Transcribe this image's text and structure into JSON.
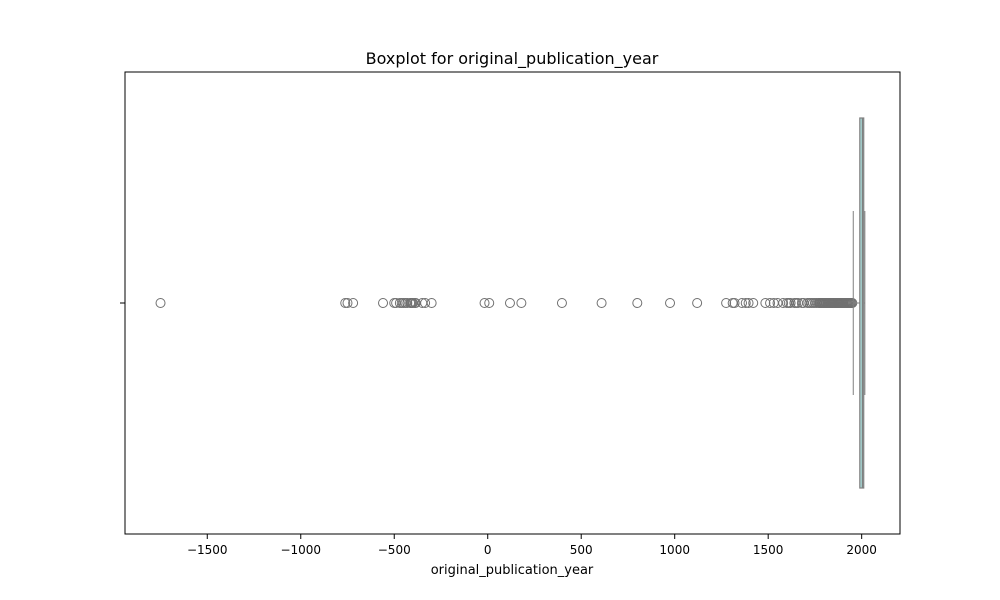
{
  "chart_data": {
    "type": "boxplot",
    "title": "Boxplot for original_publication_year",
    "xlabel": "original_publication_year",
    "ylabel": "",
    "orientation": "horizontal",
    "xlim": [
      -1940,
      2205
    ],
    "xticks": [
      -1500,
      -1000,
      -500,
      0,
      500,
      1000,
      1500,
      2000
    ],
    "tick_labels": [
      "−1500",
      "−1000",
      "−500",
      "0",
      "500",
      "1000",
      "1500",
      "2000"
    ],
    "grid": false,
    "legend": "none",
    "box": {
      "whisker_low": 1955,
      "q1": 1990,
      "median": 2004,
      "q3": 2011,
      "whisker_high": 2017
    },
    "outliers": [
      -1750,
      -762,
      -750,
      -720,
      -560,
      -500,
      -490,
      -470,
      -460,
      -450,
      -440,
      -430,
      -415,
      -410,
      -405,
      -400,
      -390,
      -385,
      -350,
      -335,
      -300,
      -17,
      8,
      119,
      180,
      397,
      609,
      800,
      975,
      1120,
      1275,
      1310,
      1320,
      1360,
      1380,
      1395,
      1420,
      1485,
      1510,
      1530,
      1550,
      1580,
      1600,
      1610,
      1620,
      1640,
      1650,
      1660,
      1680,
      1690,
      1710,
      1720,
      1730,
      1740,
      1750,
      1760,
      1770,
      1775,
      1780,
      1785,
      1790,
      1795,
      1800,
      1805,
      1810,
      1815,
      1820,
      1825,
      1830,
      1835,
      1840,
      1845,
      1850,
      1855,
      1860,
      1865,
      1870,
      1875,
      1880,
      1885,
      1890,
      1895,
      1900,
      1905,
      1910,
      1915,
      1920,
      1925,
      1930,
      1935,
      1940,
      1945,
      1950
    ],
    "colors": {
      "box_fill": "#a8d8d6",
      "box_edge": "#808080",
      "median": "#808080",
      "whisker": "#808080",
      "outlier_edge": "#707070"
    }
  }
}
